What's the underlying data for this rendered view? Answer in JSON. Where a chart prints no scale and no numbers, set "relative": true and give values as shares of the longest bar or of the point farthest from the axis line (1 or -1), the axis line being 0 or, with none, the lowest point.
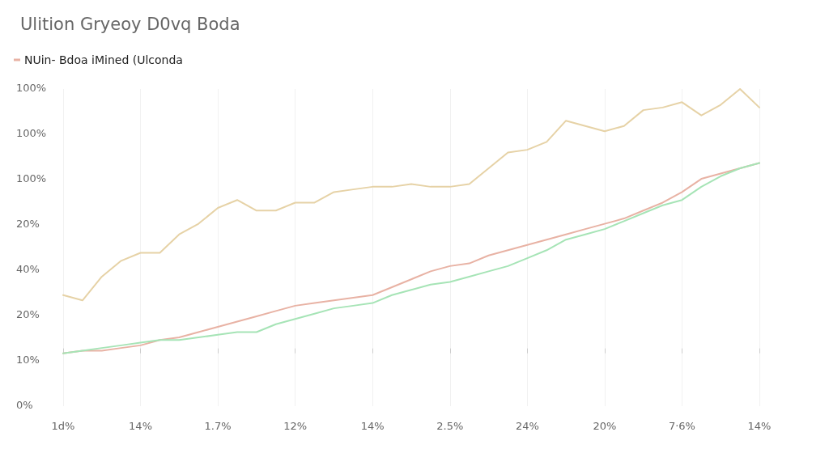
{
  "chart_data": {
    "type": "line",
    "title": "Ulition Gryeoy D0vq Boda",
    "relative": true,
    "categories": [
      "1d%",
      null,
      null,
      null,
      "14%",
      null,
      null,
      null,
      "1.7%",
      null,
      null,
      null,
      "12%",
      null,
      null,
      null,
      "14%",
      null,
      null,
      null,
      "2.5%",
      null,
      null,
      null,
      "24%",
      null,
      null,
      null,
      "20%",
      null,
      null,
      null,
      "7·6%",
      null,
      null,
      null,
      "14%"
    ],
    "annotations": [
      "100%",
      "100%",
      "100%",
      "20%",
      "40%",
      "20%",
      "10%",
      "0%"
    ],
    "grid": true,
    "legend": "top left",
    "marker": "none",
    "line_style": "solid",
    "series": [
      {
        "color": "#e6d2a6",
        "values": [
          0.22,
          0.2,
          0.29,
          0.35,
          0.38,
          0.38,
          0.45,
          0.49,
          0.55,
          0.58,
          0.54,
          0.54,
          0.57,
          0.57,
          0.61,
          0.62,
          0.63,
          0.63,
          0.64,
          0.63,
          0.63,
          0.64,
          0.7,
          0.76,
          0.77,
          0.8,
          0.88,
          0.86,
          0.84,
          0.86,
          0.92,
          0.93,
          0.95,
          0.9,
          0.94,
          1,
          0.93
        ]
      },
      {
        "name": "NUin- Bdoa iMined (Ulconda",
        "color": "#e8b2a4",
        "values": [
          0,
          0.01,
          0.01,
          0.02,
          0.03,
          0.05,
          0.06,
          0.08,
          0.1,
          0.12,
          0.14,
          0.16,
          0.18,
          0.19,
          0.2,
          0.21,
          0.22,
          0.25,
          0.28,
          0.31,
          0.33,
          0.34,
          0.37,
          0.39,
          0.41,
          0.43,
          0.45,
          0.47,
          0.49,
          0.51,
          0.54,
          0.57,
          0.61,
          0.66,
          0.68,
          0.7,
          0.72
        ]
      },
      {
        "color": "#a6e4b6",
        "values": [
          0,
          0.01,
          0.02,
          0.03,
          0.04,
          0.05,
          0.05,
          0.06,
          0.07,
          0.08,
          0.08,
          0.11,
          0.13,
          0.15,
          0.17,
          0.18,
          0.19,
          0.22,
          0.24,
          0.26,
          0.27,
          0.29,
          0.31,
          0.33,
          0.36,
          0.39,
          0.43,
          0.45,
          0.47,
          0.5,
          0.53,
          0.56,
          0.58,
          0.63,
          0.67,
          0.7,
          0.72
        ]
      }
    ]
  }
}
